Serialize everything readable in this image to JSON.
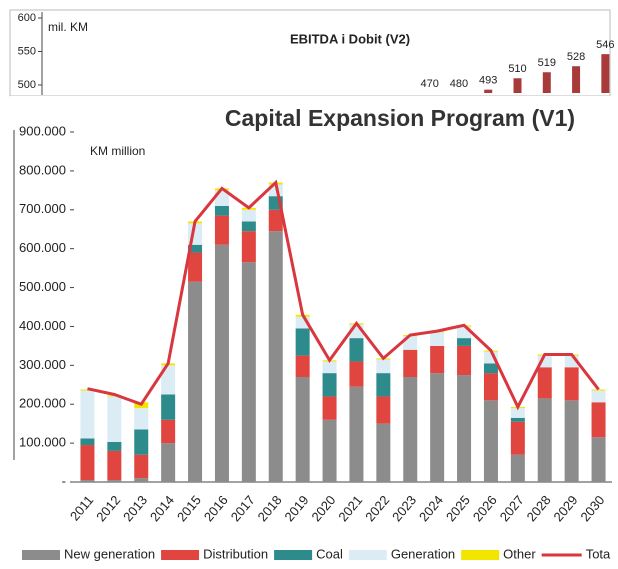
{
  "chart_data": [
    {
      "type": "bar",
      "title": "EBITDA  i Dobit  (V2)",
      "y_label": "mil. KM",
      "categories": [
        null,
        null,
        null,
        null,
        null,
        null,
        null
      ],
      "values": [
        470,
        480,
        493,
        510,
        519,
        528,
        546
      ],
      "color": "#a93a3a",
      "ylim": [
        488,
        600
      ],
      "yticks": [
        500,
        550,
        600
      ]
    },
    {
      "type": "stacked_bar_line",
      "title": "Capital Expansion Program (V1)",
      "y_label": "KM million",
      "categories": [
        "2011",
        "2012",
        "2013",
        "2014",
        "2015",
        "2016",
        "2017",
        "2018",
        "2019",
        "2020",
        "2021",
        "2022",
        "2023",
        "2024",
        "2025",
        "2026",
        "2027",
        "2028",
        "2029",
        "2030"
      ],
      "series": [
        {
          "name": "New generation",
          "color": "#8c8c8c",
          "values": [
            5,
            5,
            10,
            100,
            515,
            610,
            565,
            645,
            270,
            160,
            245,
            150,
            270,
            280,
            275,
            210,
            70,
            215,
            210,
            115
          ]
        },
        {
          "name": "Distribution",
          "color": "#e0463f",
          "values": [
            90,
            75,
            60,
            60,
            75,
            75,
            80,
            55,
            55,
            60,
            65,
            70,
            70,
            70,
            75,
            70,
            85,
            80,
            85,
            90
          ]
        },
        {
          "name": "Coal",
          "color": "#2e8b8b",
          "values": [
            17,
            23,
            65,
            65,
            20,
            25,
            25,
            35,
            70,
            60,
            60,
            60,
            0,
            0,
            20,
            25,
            10,
            0,
            0,
            0
          ]
        },
        {
          "name": "Generation",
          "color": "#dcecf5",
          "values": [
            123,
            117,
            55,
            75,
            55,
            40,
            30,
            30,
            30,
            30,
            35,
            35,
            35,
            35,
            30,
            30,
            25,
            30,
            30,
            30
          ]
        },
        {
          "name": "Other",
          "color": "#f2e600",
          "values": [
            3,
            3,
            15,
            5,
            5,
            5,
            5,
            5,
            5,
            3,
            3,
            3,
            3,
            3,
            3,
            3,
            3,
            3,
            3,
            3
          ]
        },
        {
          "name": "Tota",
          "color": "#d9363e",
          "type": "line",
          "values": [
            240,
            225,
            200,
            305,
            670,
            755,
            705,
            770,
            430,
            313,
            408,
            318,
            378,
            388,
            403,
            338,
            193,
            328,
            328,
            238
          ]
        }
      ],
      "ylim": [
        0,
        900
      ],
      "yticks": [
        {
          "value": 0,
          "label": "-"
        },
        {
          "value": 100,
          "label": "100.000"
        },
        {
          "value": 200,
          "label": "200.000"
        },
        {
          "value": 300,
          "label": "300.000"
        },
        {
          "value": 400,
          "label": "400.000"
        },
        {
          "value": 500,
          "label": "500.000"
        },
        {
          "value": 600,
          "label": "600.000"
        },
        {
          "value": 700,
          "label": "700.000"
        },
        {
          "value": 800,
          "label": "800.000"
        },
        {
          "value": 900,
          "label": "900.000"
        }
      ]
    }
  ]
}
